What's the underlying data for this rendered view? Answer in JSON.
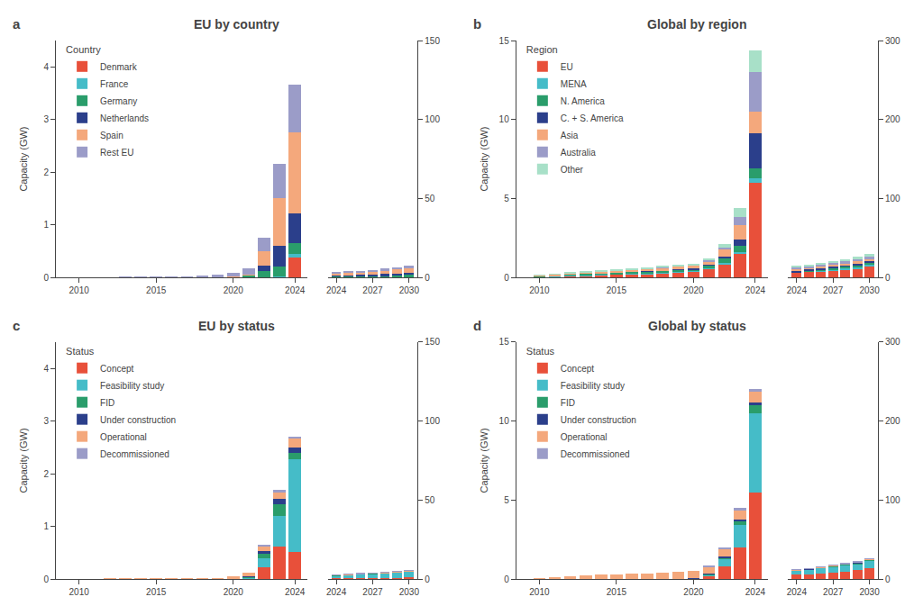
{
  "chart_data": [
    {
      "type": "bar",
      "stacked": true,
      "grid": false,
      "title": "EU by country",
      "ylabel": "Capacity (GW)",
      "annotations": [
        "a"
      ],
      "legend_title": "Country",
      "legend": "upper left",
      "x": [
        2009,
        2010,
        2011,
        2012,
        2013,
        2014,
        2015,
        2016,
        2017,
        2018,
        2019,
        2020,
        2021,
        2022,
        2023,
        2024
      ],
      "series": [
        {
          "name": "Denmark",
          "color": "#E8503A",
          "values": [
            0,
            0,
            0,
            0,
            0,
            0,
            0,
            0,
            0,
            0,
            0,
            0,
            0,
            0,
            0,
            0.38
          ]
        },
        {
          "name": "France",
          "color": "#45BCC8",
          "values": [
            0,
            0,
            0,
            0,
            0,
            0,
            0,
            0,
            0,
            0,
            0,
            0,
            0,
            0.01,
            0.02,
            0.06
          ]
        },
        {
          "name": "Germany",
          "color": "#2A9D6B",
          "values": [
            0,
            0,
            0,
            0,
            0,
            0,
            0,
            0,
            0,
            0.002,
            0.005,
            0.01,
            0.04,
            0.12,
            0.18,
            0.22
          ]
        },
        {
          "name": "Netherlands",
          "color": "#2B3F8B",
          "values": [
            0,
            0,
            0,
            0,
            0,
            0,
            0,
            0,
            0,
            0,
            0,
            0,
            0,
            0.09,
            0.4,
            0.55
          ]
        },
        {
          "name": "Spain",
          "color": "#F4A87C",
          "values": [
            0,
            0,
            0,
            0,
            0,
            0,
            0,
            0,
            0,
            0,
            0,
            0.005,
            0.01,
            0.28,
            0.9,
            1.55
          ]
        },
        {
          "name": "Rest EU",
          "color": "#9B9CC8",
          "values": [
            0,
            0.001,
            0.001,
            0.002,
            0.003,
            0.004,
            0.006,
            0.008,
            0.012,
            0.02,
            0.04,
            0.07,
            0.12,
            0.25,
            0.65,
            0.9
          ]
        }
      ],
      "xlim": [
        2008.5,
        2024.8
      ],
      "xticks": [
        2010,
        2015,
        2020,
        2024
      ],
      "ylim": [
        0,
        4.5
      ],
      "yticks": [
        0,
        1,
        2,
        3,
        4
      ]
    },
    {
      "type": "bar",
      "stacked": true,
      "grid": false,
      "x": [
        2024,
        2025,
        2026,
        2027,
        2028,
        2029,
        2030
      ],
      "series": [
        {
          "color": "#E8503A",
          "values": [
            0.38,
            0.38,
            0.38,
            0.38,
            0.38,
            0.38,
            0.38
          ]
        },
        {
          "color": "#45BCC8",
          "values": [
            0.06,
            0.08,
            0.1,
            0.12,
            0.15,
            0.18,
            0.22
          ]
        },
        {
          "color": "#2A9D6B",
          "values": [
            0.22,
            0.28,
            0.38,
            0.5,
            0.65,
            0.8,
            1.0
          ]
        },
        {
          "color": "#2B3F8B",
          "values": [
            0.55,
            0.6,
            0.65,
            0.75,
            0.9,
            1.05,
            1.2
          ]
        },
        {
          "color": "#F4A87C",
          "values": [
            1.55,
            1.6,
            1.7,
            1.9,
            2.2,
            2.6,
            3.0
          ]
        },
        {
          "color": "#9B9CC8",
          "values": [
            0.9,
            0.95,
            1.0,
            1.1,
            1.25,
            1.4,
            1.6
          ]
        }
      ],
      "xlim": [
        2023.3,
        2030.7
      ],
      "xticks": [
        2024,
        2027,
        2030
      ],
      "ylim": [
        0,
        150
      ],
      "yticks": [
        0,
        50,
        100,
        150
      ]
    },
    {
      "type": "bar",
      "stacked": true,
      "grid": false,
      "title": "Global by region",
      "ylabel": "Capacity (GW)",
      "annotations": [
        "b"
      ],
      "legend_title": "Region",
      "legend": "upper left",
      "x": [
        2009,
        2010,
        2011,
        2012,
        2013,
        2014,
        2015,
        2016,
        2017,
        2018,
        2019,
        2020,
        2021,
        2022,
        2023,
        2024
      ],
      "series": [
        {
          "name": "EU",
          "color": "#E8503A",
          "values": [
            0,
            0.04,
            0.06,
            0.1,
            0.12,
            0.15,
            0.18,
            0.2,
            0.22,
            0.25,
            0.3,
            0.35,
            0.55,
            0.85,
            1.5,
            6.0
          ]
        },
        {
          "name": "MENA",
          "color": "#45BCC8",
          "values": [
            0,
            0.02,
            0.03,
            0.04,
            0.04,
            0.05,
            0.05,
            0.06,
            0.06,
            0.06,
            0.05,
            0.04,
            0.05,
            0.08,
            0.1,
            0.3
          ]
        },
        {
          "name": "N. America",
          "color": "#2A9D6B",
          "values": [
            0,
            0.02,
            0.03,
            0.04,
            0.05,
            0.06,
            0.07,
            0.08,
            0.1,
            0.1,
            0.12,
            0.12,
            0.15,
            0.25,
            0.4,
            0.6
          ]
        },
        {
          "name": "C. + S. America",
          "color": "#2B3F8B",
          "values": [
            0,
            0,
            0,
            0,
            0,
            0,
            0,
            0,
            0.01,
            0.02,
            0.03,
            0.04,
            0.06,
            0.12,
            0.4,
            2.2
          ]
        },
        {
          "name": "Asia",
          "color": "#F4A87C",
          "values": [
            0,
            0.05,
            0.08,
            0.1,
            0.12,
            0.14,
            0.15,
            0.16,
            0.18,
            0.2,
            0.2,
            0.2,
            0.2,
            0.45,
            0.9,
            1.4
          ]
        },
        {
          "name": "Australia",
          "color": "#9B9CC8",
          "values": [
            0,
            0,
            0,
            0,
            0,
            0,
            0,
            0,
            0,
            0.01,
            0.02,
            0.03,
            0.06,
            0.12,
            0.5,
            2.5
          ]
        },
        {
          "name": "Other",
          "color": "#A8E0C8",
          "values": [
            0,
            0.02,
            0.03,
            0.04,
            0.05,
            0.05,
            0.05,
            0.06,
            0.06,
            0.06,
            0.06,
            0.06,
            0.12,
            0.25,
            0.6,
            1.4
          ]
        }
      ],
      "xlim": [
        2008.5,
        2024.8
      ],
      "xticks": [
        2010,
        2015,
        2020,
        2024
      ],
      "ylim": [
        0,
        15
      ],
      "yticks": [
        0,
        5,
        10,
        15
      ]
    },
    {
      "type": "bar",
      "stacked": true,
      "grid": false,
      "x": [
        2024,
        2025,
        2026,
        2027,
        2028,
        2029,
        2030
      ],
      "series": [
        {
          "color": "#E8503A",
          "values": [
            6.0,
            7.0,
            8.0,
            9.0,
            10.0,
            11.5,
            13.5
          ]
        },
        {
          "color": "#45BCC8",
          "values": [
            0.3,
            0.5,
            0.8,
            1.2,
            1.8,
            2.2,
            2.8
          ]
        },
        {
          "color": "#2A9D6B",
          "values": [
            0.6,
            0.8,
            1.0,
            1.2,
            1.5,
            1.8,
            2.0
          ]
        },
        {
          "color": "#2B3F8B",
          "values": [
            2.2,
            2.3,
            2.4,
            2.5,
            2.6,
            2.7,
            2.8
          ]
        },
        {
          "color": "#F4A87C",
          "values": [
            1.4,
            1.5,
            1.6,
            1.7,
            1.9,
            2.1,
            2.3
          ]
        },
        {
          "color": "#9B9CC8",
          "values": [
            2.5,
            2.6,
            2.8,
            3.0,
            3.3,
            3.6,
            4.0
          ]
        },
        {
          "color": "#A8E0C8",
          "values": [
            1.4,
            1.5,
            1.6,
            1.7,
            1.8,
            1.9,
            2.1
          ]
        }
      ],
      "xlim": [
        2023.3,
        2030.7
      ],
      "xticks": [
        2024,
        2027,
        2030
      ],
      "ylim": [
        0,
        300
      ],
      "yticks": [
        0,
        100,
        200,
        300
      ]
    },
    {
      "type": "bar",
      "stacked": true,
      "grid": false,
      "title": "EU by status",
      "ylabel": "Capacity (GW)",
      "annotations": [
        "c"
      ],
      "legend_title": "Status",
      "legend": "upper left",
      "x": [
        2009,
        2010,
        2011,
        2012,
        2013,
        2014,
        2015,
        2016,
        2017,
        2018,
        2019,
        2020,
        2021,
        2022,
        2023,
        2024
      ],
      "series": [
        {
          "name": "Concept",
          "color": "#E8503A",
          "values": [
            0,
            0,
            0,
            0,
            0,
            0,
            0,
            0,
            0,
            0,
            0,
            0,
            0,
            0.22,
            0.62,
            0.52
          ]
        },
        {
          "name": "Feasibility study",
          "color": "#45BCC8",
          "values": [
            0,
            0,
            0,
            0,
            0,
            0,
            0,
            0,
            0,
            0,
            0,
            0,
            0.02,
            0.18,
            0.58,
            1.75
          ]
        },
        {
          "name": "FID",
          "color": "#2A9D6B",
          "values": [
            0,
            0,
            0,
            0,
            0,
            0,
            0,
            0,
            0,
            0,
            0,
            0,
            0.02,
            0.08,
            0.22,
            0.12
          ]
        },
        {
          "name": "Under construction",
          "color": "#2B3F8B",
          "values": [
            0,
            0,
            0,
            0,
            0,
            0,
            0,
            0,
            0,
            0,
            0,
            0.005,
            0.01,
            0.05,
            0.1,
            0.1
          ]
        },
        {
          "name": "Operational",
          "color": "#F4A87C",
          "values": [
            0,
            0.001,
            0.002,
            0.003,
            0.005,
            0.006,
            0.008,
            0.01,
            0.012,
            0.015,
            0.025,
            0.045,
            0.07,
            0.1,
            0.14,
            0.18
          ]
        },
        {
          "name": "Decommissioned",
          "color": "#9B9CC8",
          "values": [
            0,
            0,
            0,
            0,
            0,
            0,
            0,
            0,
            0,
            0,
            0,
            0,
            0,
            0.015,
            0.025,
            0.035
          ]
        }
      ],
      "xlim": [
        2008.5,
        2024.8
      ],
      "xticks": [
        2010,
        2015,
        2020,
        2024
      ],
      "ylim": [
        0,
        4.5
      ],
      "yticks": [
        0,
        1,
        2,
        3,
        4
      ]
    },
    {
      "type": "bar",
      "stacked": true,
      "grid": false,
      "x": [
        2024,
        2025,
        2026,
        2027,
        2028,
        2029,
        2030
      ],
      "series": [
        {
          "color": "#E8503A",
          "values": [
            0.52,
            0.55,
            0.6,
            0.65,
            0.7,
            0.8,
            0.95
          ]
        },
        {
          "color": "#45BCC8",
          "values": [
            1.75,
            2.1,
            2.4,
            2.7,
            3.0,
            3.3,
            3.7
          ]
        },
        {
          "color": "#2A9D6B",
          "values": [
            0.12,
            0.14,
            0.16,
            0.18,
            0.2,
            0.22,
            0.25
          ]
        },
        {
          "color": "#2B3F8B",
          "values": [
            0.1,
            0.1,
            0.1,
            0.1,
            0.1,
            0.1,
            0.1
          ]
        },
        {
          "color": "#F4A87C",
          "values": [
            0.18,
            0.19,
            0.2,
            0.22,
            0.24,
            0.26,
            0.28
          ]
        },
        {
          "color": "#9B9CC8",
          "values": [
            0.035,
            0.035,
            0.035,
            0.035,
            0.035,
            0.035,
            0.035
          ]
        }
      ],
      "xlim": [
        2023.3,
        2030.7
      ],
      "xticks": [
        2024,
        2027,
        2030
      ],
      "ylim": [
        0,
        150
      ],
      "yticks": [
        0,
        50,
        100,
        150
      ]
    },
    {
      "type": "bar",
      "stacked": true,
      "grid": false,
      "title": "Global by status",
      "ylabel": "Capacity (GW)",
      "annotations": [
        "d"
      ],
      "legend_title": "Status",
      "legend": "upper left",
      "x": [
        2009,
        2010,
        2011,
        2012,
        2013,
        2014,
        2015,
        2016,
        2017,
        2018,
        2019,
        2020,
        2021,
        2022,
        2023,
        2024
      ],
      "series": [
        {
          "name": "Concept",
          "color": "#E8503A",
          "values": [
            0,
            0,
            0,
            0,
            0,
            0,
            0,
            0,
            0,
            0,
            0,
            0,
            0.15,
            0.8,
            2.0,
            5.5
          ]
        },
        {
          "name": "Feasibility study",
          "color": "#45BCC8",
          "values": [
            0,
            0,
            0,
            0,
            0,
            0,
            0,
            0,
            0,
            0,
            0.01,
            0.02,
            0.12,
            0.45,
            1.4,
            5.0
          ]
        },
        {
          "name": "FID",
          "color": "#2A9D6B",
          "values": [
            0,
            0,
            0,
            0,
            0,
            0,
            0,
            0,
            0,
            0,
            0,
            0.02,
            0.05,
            0.12,
            0.28,
            0.5
          ]
        },
        {
          "name": "Under construction",
          "color": "#2B3F8B",
          "values": [
            0,
            0,
            0,
            0,
            0,
            0,
            0,
            0,
            0,
            0,
            0,
            0.01,
            0.02,
            0.04,
            0.08,
            0.15
          ]
        },
        {
          "name": "Operational",
          "color": "#F4A87C",
          "values": [
            0,
            0.08,
            0.12,
            0.18,
            0.22,
            0.26,
            0.3,
            0.32,
            0.36,
            0.4,
            0.42,
            0.44,
            0.46,
            0.52,
            0.62,
            0.72
          ]
        },
        {
          "name": "Decommissioned",
          "color": "#9B9CC8",
          "values": [
            0,
            0,
            0,
            0,
            0,
            0,
            0,
            0,
            0,
            0,
            0,
            0,
            0.01,
            0.05,
            0.1,
            0.18
          ]
        }
      ],
      "xlim": [
        2008.5,
        2024.8
      ],
      "xticks": [
        2010,
        2015,
        2020,
        2024
      ],
      "ylim": [
        0,
        15
      ],
      "yticks": [
        0,
        5,
        10,
        15
      ]
    },
    {
      "type": "bar",
      "stacked": true,
      "grid": false,
      "x": [
        2024,
        2025,
        2026,
        2027,
        2028,
        2029,
        2030
      ],
      "series": [
        {
          "color": "#E8503A",
          "values": [
            5.5,
            6.0,
            7.0,
            8.0,
            9.5,
            11.0,
            13.5
          ]
        },
        {
          "color": "#45BCC8",
          "values": [
            5.0,
            6.0,
            7.0,
            7.5,
            8.0,
            8.5,
            9.5
          ]
        },
        {
          "color": "#2A9D6B",
          "values": [
            0.5,
            0.6,
            0.7,
            0.8,
            1.0,
            1.1,
            1.2
          ]
        },
        {
          "color": "#2B3F8B",
          "values": [
            0.15,
            0.15,
            0.15,
            0.15,
            0.15,
            0.15,
            0.15
          ]
        },
        {
          "color": "#F4A87C",
          "values": [
            0.72,
            0.72,
            0.75,
            0.8,
            0.85,
            0.9,
            0.95
          ]
        },
        {
          "color": "#9B9CC8",
          "values": [
            0.18,
            0.18,
            0.18,
            0.18,
            0.18,
            0.18,
            0.18
          ]
        }
      ],
      "xlim": [
        2023.3,
        2030.7
      ],
      "xticks": [
        2024,
        2027,
        2030
      ],
      "ylim": [
        0,
        300
      ],
      "yticks": [
        0,
        100,
        200,
        300
      ]
    }
  ]
}
